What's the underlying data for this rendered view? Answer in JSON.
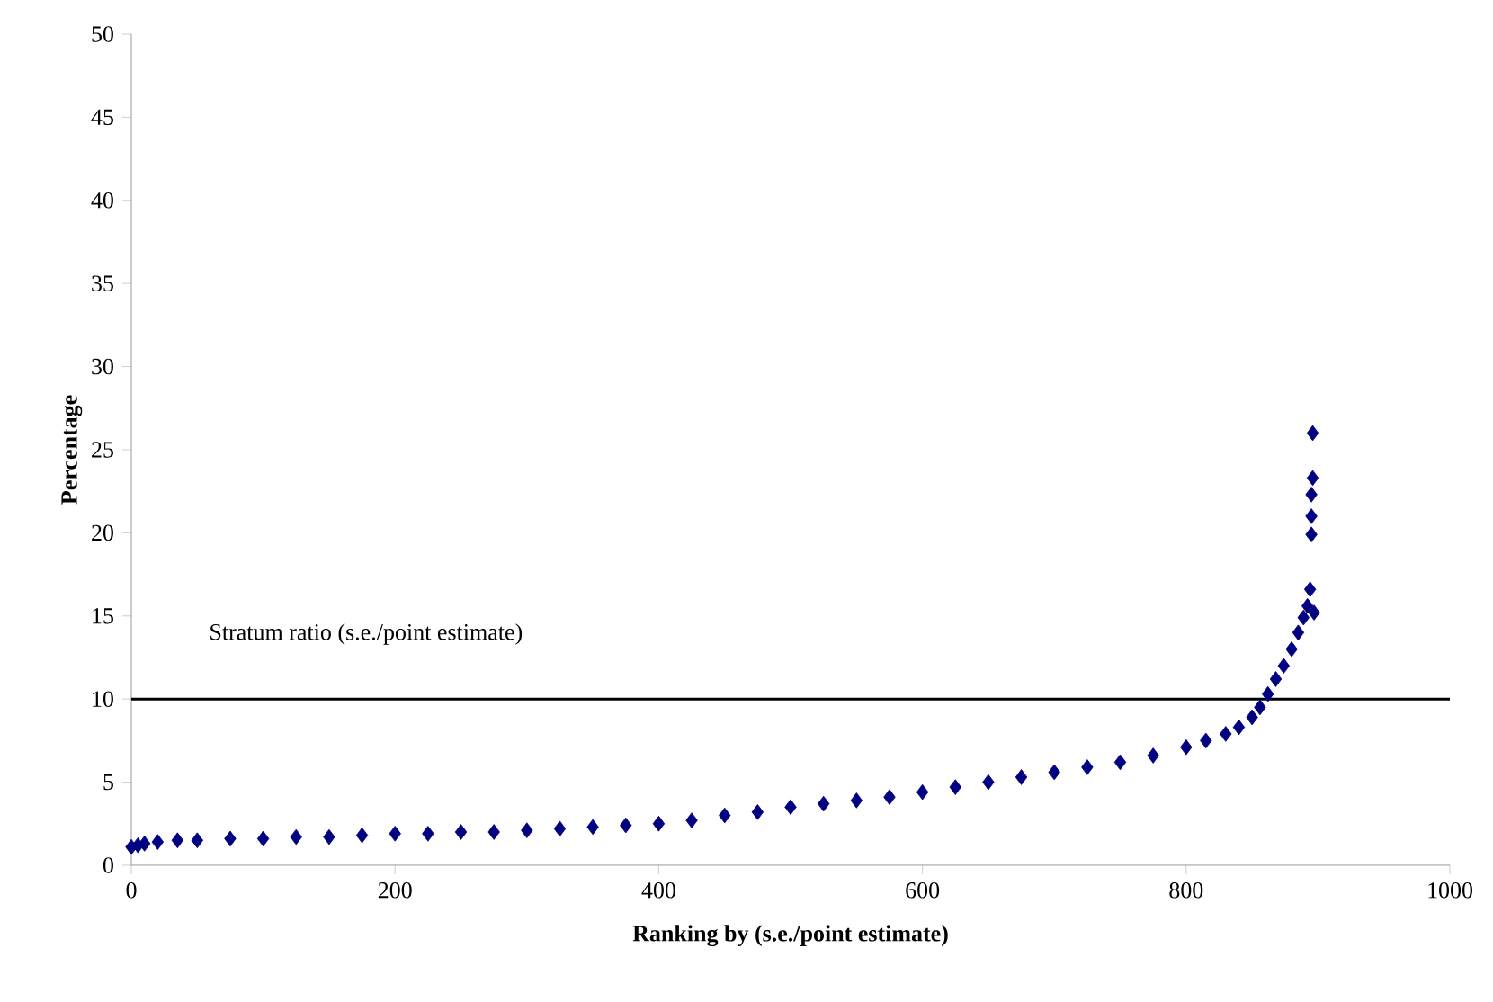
{
  "chart_data": {
    "type": "scatter",
    "xlabel": "Ranking by (s.e./point estimate)",
    "ylabel": "Percentage",
    "x": [
      0,
      5,
      10,
      20,
      35,
      50,
      75,
      100,
      125,
      150,
      175,
      200,
      225,
      250,
      275,
      300,
      325,
      350,
      375,
      400,
      425,
      450,
      475,
      500,
      525,
      550,
      575,
      600,
      625,
      650,
      675,
      700,
      725,
      750,
      775,
      800,
      815,
      830,
      840,
      850,
      856,
      862,
      868,
      874,
      880,
      885,
      889,
      892,
      894,
      895,
      895,
      895,
      896,
      896,
      897
    ],
    "values": [
      1.1,
      1.2,
      1.3,
      1.4,
      1.5,
      1.5,
      1.6,
      1.6,
      1.7,
      1.7,
      1.8,
      1.9,
      1.9,
      2.0,
      2.0,
      2.1,
      2.2,
      2.3,
      2.4,
      2.5,
      2.7,
      3.0,
      3.2,
      3.5,
      3.7,
      3.9,
      4.1,
      4.4,
      4.7,
      5.0,
      5.3,
      5.6,
      5.9,
      6.2,
      6.6,
      7.1,
      7.5,
      7.9,
      8.3,
      8.9,
      9.5,
      10.3,
      11.2,
      12.0,
      13.0,
      14.0,
      14.9,
      15.6,
      16.6,
      19.9,
      21.0,
      22.3,
      23.3,
      26.0,
      15.2
    ],
    "color": "#000080",
    "marker": "diamond",
    "xlim": [
      0,
      1000
    ],
    "xticks": [
      0,
      200,
      400,
      600,
      800,
      1000
    ],
    "ylim": [
      0,
      50
    ],
    "yticks": [
      0,
      5,
      10,
      15,
      20,
      25,
      30,
      35,
      40,
      45,
      50
    ],
    "ref_lines": [
      {
        "axis": "y",
        "value": 10,
        "label": "Stratum ratio (s.e./point estimate)",
        "color": "#000000"
      }
    ]
  }
}
